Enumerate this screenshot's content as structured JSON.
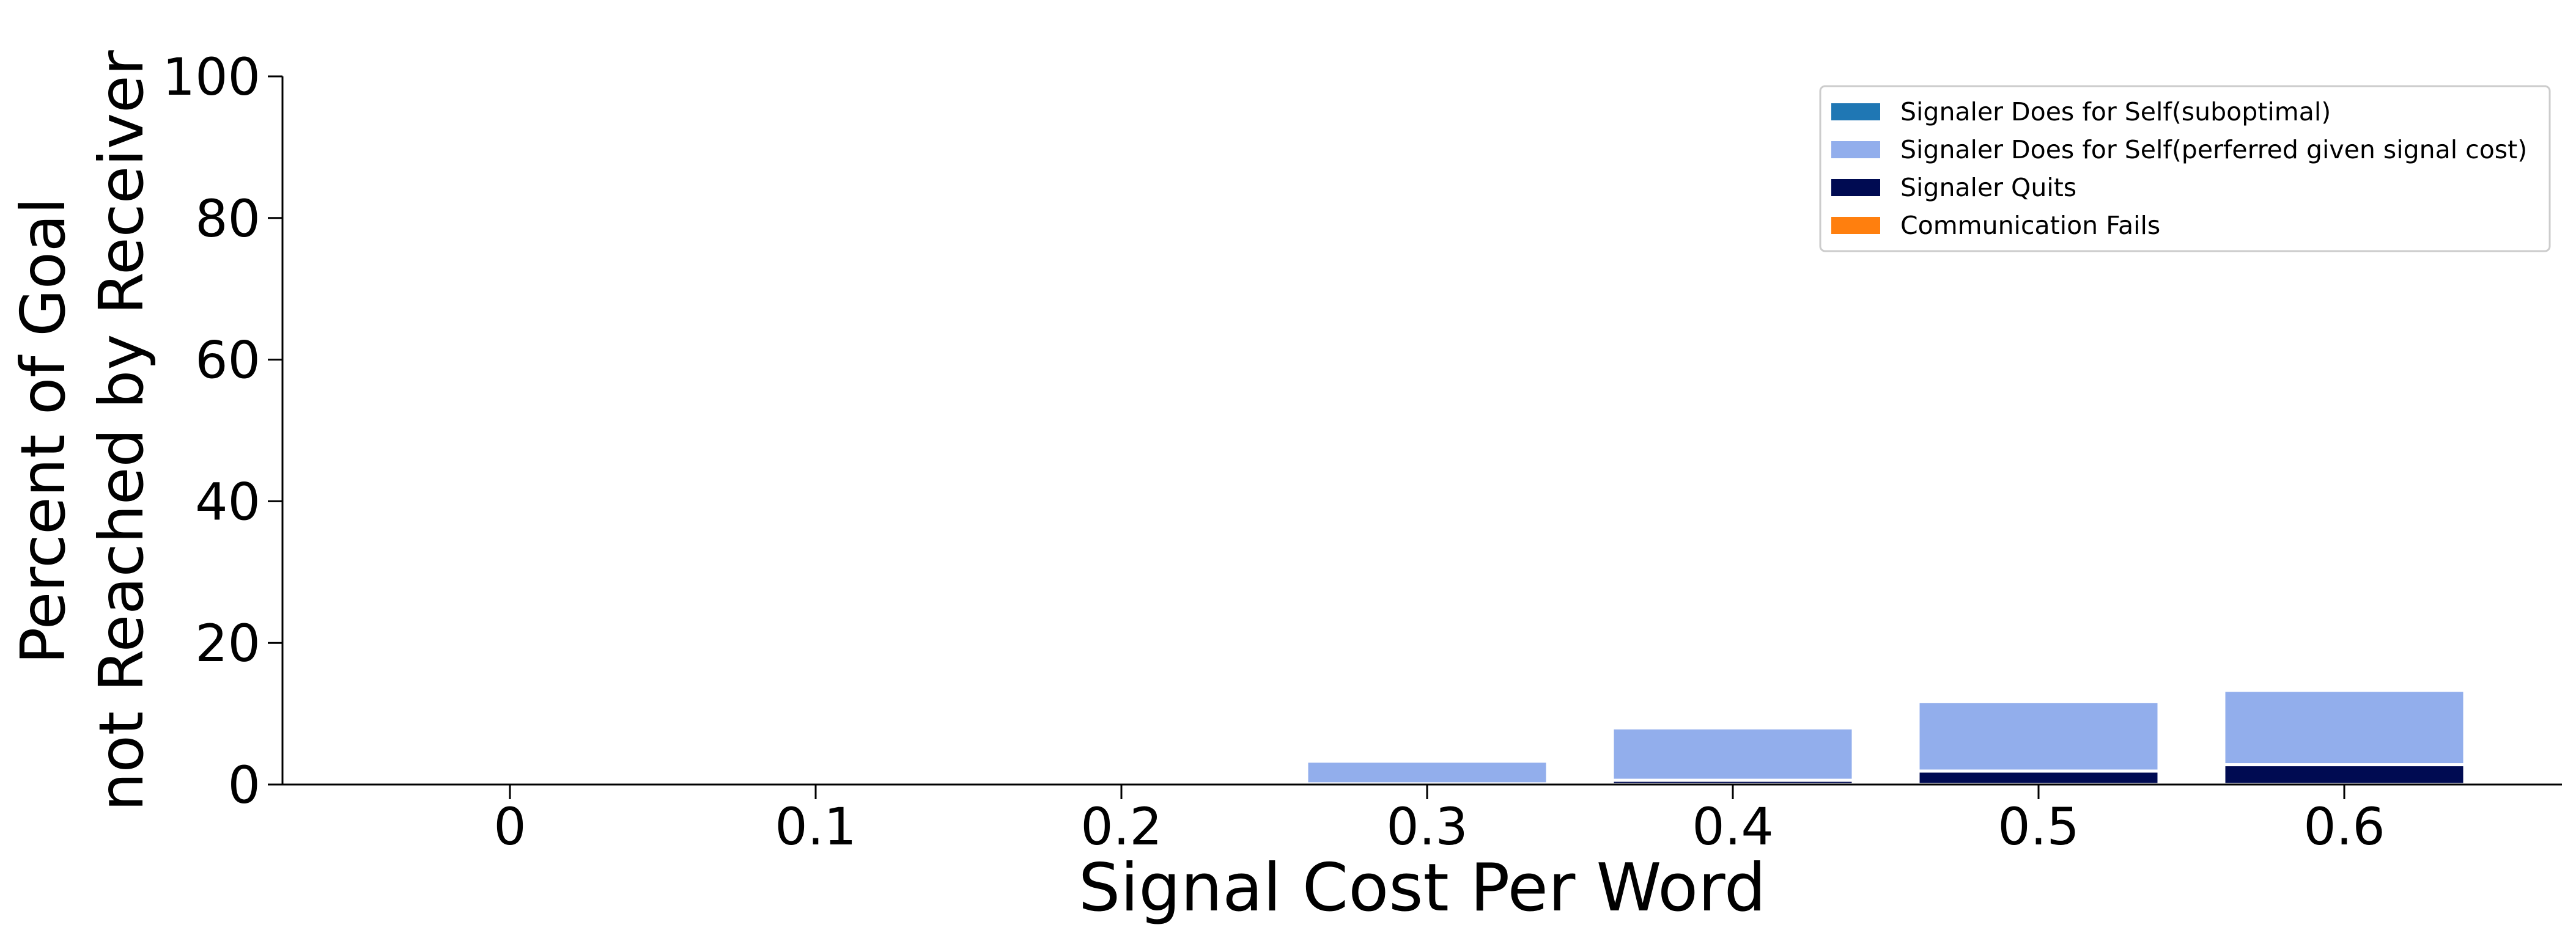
{
  "chart_data": {
    "type": "bar",
    "stacked": true,
    "title": "",
    "xlabel": "Signal Cost Per Word",
    "ylabel_line1": "Percent of Goal",
    "ylabel_line2": "not Reached by Receiver",
    "categories": [
      "0",
      "0.1",
      "0.2",
      "0.3",
      "0.4",
      "0.5",
      "0.6"
    ],
    "ylim": [
      0,
      100
    ],
    "yticks": [
      "0",
      "20",
      "40",
      "60",
      "80",
      "100"
    ],
    "grid": false,
    "legend_position": "top-right",
    "series": [
      {
        "name": "Signaler Does for Self(suboptimal)",
        "color": "#1f77b4",
        "values": [
          0,
          0,
          0,
          0,
          0,
          0,
          0
        ]
      },
      {
        "name": "Signaler Does for Self(perferred given signal cost)",
        "color": "#92aeec",
        "values": [
          0,
          0,
          0,
          3.2,
          7.4,
          9.8,
          10.5
        ]
      },
      {
        "name": "Signaler Quits",
        "color": "#000b52",
        "values": [
          0,
          0,
          0,
          0.1,
          0.6,
          1.9,
          2.8
        ]
      },
      {
        "name": "Communication Fails",
        "color": "#ff7f0e",
        "values": [
          0,
          0,
          0,
          0,
          0,
          0,
          0
        ]
      }
    ],
    "stack_order": [
      2,
      1,
      0,
      3
    ]
  }
}
